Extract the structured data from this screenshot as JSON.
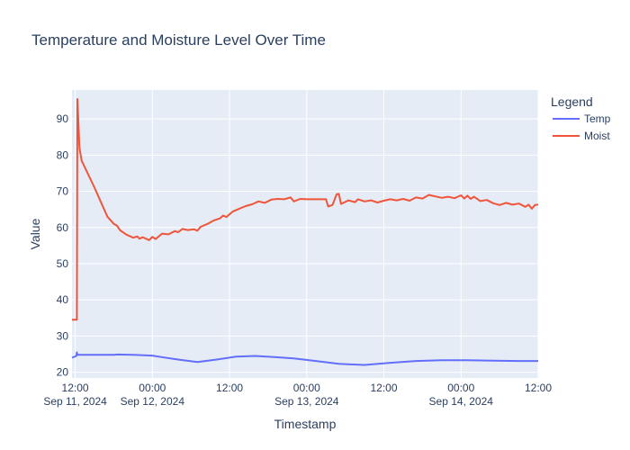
{
  "chart_data": {
    "type": "line",
    "title": "Temperature and Moisture Level Over Time",
    "xlabel": "Timestamp",
    "ylabel": "Value",
    "legend_title": "Legend",
    "legend_position": "top-right",
    "xlim": [
      "2024-09-11 11:30",
      "2024-09-14 12:00"
    ],
    "ylim": [
      18.4,
      98
    ],
    "x_ticks": [
      {
        "t": "2024-09-11 12:00",
        "label": "12:00",
        "sublabel": "Sep 11, 2024"
      },
      {
        "t": "2024-09-12 00:00",
        "label": "00:00",
        "sublabel": "Sep 12, 2024"
      },
      {
        "t": "2024-09-12 12:00",
        "label": "12:00",
        "sublabel": ""
      },
      {
        "t": "2024-09-13 00:00",
        "label": "00:00",
        "sublabel": "Sep 13, 2024"
      },
      {
        "t": "2024-09-13 12:00",
        "label": "12:00",
        "sublabel": ""
      },
      {
        "t": "2024-09-14 00:00",
        "label": "00:00",
        "sublabel": "Sep 14, 2024"
      },
      {
        "t": "2024-09-14 12:00",
        "label": "12:00",
        "sublabel": ""
      }
    ],
    "y_ticks": [
      20,
      30,
      40,
      50,
      60,
      70,
      80,
      90
    ],
    "grid": true,
    "series": [
      {
        "name": "Temp",
        "color": "#636efa",
        "points": [
          [
            "2024-09-11 11:30",
            24.0
          ],
          [
            "2024-09-11 12:10",
            24.5
          ],
          [
            "2024-09-11 12:15",
            25.5
          ],
          [
            "2024-09-11 12:20",
            24.8
          ],
          [
            "2024-09-11 14:00",
            24.8
          ],
          [
            "2024-09-11 18:00",
            24.8
          ],
          [
            "2024-09-11 18:30",
            24.9
          ],
          [
            "2024-09-11 21:00",
            24.8
          ],
          [
            "2024-09-12 00:00",
            24.6
          ],
          [
            "2024-09-12 01:00",
            24.3
          ],
          [
            "2024-09-12 04:00",
            23.5
          ],
          [
            "2024-09-12 07:00",
            22.8
          ],
          [
            "2024-09-12 10:00",
            23.5
          ],
          [
            "2024-09-12 13:00",
            24.3
          ],
          [
            "2024-09-12 16:00",
            24.5
          ],
          [
            "2024-09-12 19:00",
            24.2
          ],
          [
            "2024-09-12 22:00",
            23.8
          ],
          [
            "2024-09-13 01:00",
            23.2
          ],
          [
            "2024-09-13 05:00",
            22.3
          ],
          [
            "2024-09-13 09:00",
            22.0
          ],
          [
            "2024-09-13 13:00",
            22.6
          ],
          [
            "2024-09-13 17:00",
            23.1
          ],
          [
            "2024-09-13 21:00",
            23.3
          ],
          [
            "2024-09-14 01:00",
            23.3
          ],
          [
            "2024-09-14 05:00",
            23.2
          ],
          [
            "2024-09-14 09:00",
            23.1
          ],
          [
            "2024-09-14 12:00",
            23.1
          ]
        ]
      },
      {
        "name": "Moist",
        "color": "#ef553b",
        "points": [
          [
            "2024-09-11 11:30",
            34.5
          ],
          [
            "2024-09-11 12:15",
            34.5
          ],
          [
            "2024-09-11 12:20",
            95.5
          ],
          [
            "2024-09-11 12:40",
            82.0
          ],
          [
            "2024-09-11 13:00",
            78.5
          ],
          [
            "2024-09-11 15:00",
            71.0
          ],
          [
            "2024-09-11 17:00",
            63.0
          ],
          [
            "2024-09-11 18:00",
            61.0
          ],
          [
            "2024-09-11 18:30",
            60.5
          ],
          [
            "2024-09-11 19:00",
            59.2
          ],
          [
            "2024-09-11 20:00",
            58.0
          ],
          [
            "2024-09-11 21:00",
            57.2
          ],
          [
            "2024-09-11 21:40",
            57.5
          ],
          [
            "2024-09-11 22:00",
            56.9
          ],
          [
            "2024-09-11 22:30",
            57.3
          ],
          [
            "2024-09-11 23:30",
            56.5
          ],
          [
            "2024-09-12 00:00",
            57.4
          ],
          [
            "2024-09-12 00:30",
            56.8
          ],
          [
            "2024-09-12 01:30",
            58.3
          ],
          [
            "2024-09-12 02:30",
            58.1
          ],
          [
            "2024-09-12 03:30",
            59.0
          ],
          [
            "2024-09-12 04:00",
            58.7
          ],
          [
            "2024-09-12 04:40",
            59.6
          ],
          [
            "2024-09-12 05:30",
            59.3
          ],
          [
            "2024-09-12 06:30",
            59.5
          ],
          [
            "2024-09-12 07:00",
            59.1
          ],
          [
            "2024-09-12 07:30",
            60.2
          ],
          [
            "2024-09-12 08:30",
            60.9
          ],
          [
            "2024-09-12 09:30",
            61.9
          ],
          [
            "2024-09-12 10:30",
            62.5
          ],
          [
            "2024-09-12 11:00",
            63.3
          ],
          [
            "2024-09-12 11:30",
            62.9
          ],
          [
            "2024-09-12 12:30",
            64.4
          ],
          [
            "2024-09-12 13:30",
            65.2
          ],
          [
            "2024-09-12 14:30",
            65.9
          ],
          [
            "2024-09-12 15:30",
            66.4
          ],
          [
            "2024-09-12 16:30",
            67.2
          ],
          [
            "2024-09-12 17:30",
            66.8
          ],
          [
            "2024-09-12 18:30",
            67.7
          ],
          [
            "2024-09-12 19:30",
            67.9
          ],
          [
            "2024-09-12 20:30",
            67.8
          ],
          [
            "2024-09-12 21:30",
            68.3
          ],
          [
            "2024-09-12 22:00",
            67.2
          ],
          [
            "2024-09-12 23:00",
            67.9
          ],
          [
            "2024-09-13 00:00",
            67.8
          ],
          [
            "2024-09-13 03:00",
            67.8
          ],
          [
            "2024-09-13 03:20",
            65.8
          ],
          [
            "2024-09-13 04:00",
            66.2
          ],
          [
            "2024-09-13 04:40",
            69.2
          ],
          [
            "2024-09-13 05:00",
            69.3
          ],
          [
            "2024-09-13 05:20",
            66.5
          ],
          [
            "2024-09-13 06:30",
            67.5
          ],
          [
            "2024-09-13 07:30",
            67.0
          ],
          [
            "2024-09-13 08:00",
            67.8
          ],
          [
            "2024-09-13 09:00",
            67.2
          ],
          [
            "2024-09-13 10:00",
            67.5
          ],
          [
            "2024-09-13 11:00",
            66.9
          ],
          [
            "2024-09-13 12:00",
            67.4
          ],
          [
            "2024-09-13 13:00",
            67.8
          ],
          [
            "2024-09-13 14:00",
            67.5
          ],
          [
            "2024-09-13 15:00",
            67.9
          ],
          [
            "2024-09-13 16:00",
            67.4
          ],
          [
            "2024-09-13 17:00",
            68.3
          ],
          [
            "2024-09-13 18:00",
            68.0
          ],
          [
            "2024-09-13 19:00",
            69.0
          ],
          [
            "2024-09-13 20:00",
            68.6
          ],
          [
            "2024-09-13 21:00",
            68.2
          ],
          [
            "2024-09-13 22:00",
            68.5
          ],
          [
            "2024-09-13 23:00",
            68.1
          ],
          [
            "2024-09-14 00:00",
            68.9
          ],
          [
            "2024-09-14 00:30",
            68.0
          ],
          [
            "2024-09-14 01:00",
            68.8
          ],
          [
            "2024-09-14 01:30",
            67.9
          ],
          [
            "2024-09-14 02:00",
            68.5
          ],
          [
            "2024-09-14 03:00",
            67.3
          ],
          [
            "2024-09-14 04:00",
            67.6
          ],
          [
            "2024-09-14 05:00",
            66.7
          ],
          [
            "2024-09-14 06:00",
            66.2
          ],
          [
            "2024-09-14 07:00",
            66.8
          ],
          [
            "2024-09-14 08:00",
            66.3
          ],
          [
            "2024-09-14 09:00",
            66.6
          ],
          [
            "2024-09-14 10:00",
            65.7
          ],
          [
            "2024-09-14 10:30",
            66.3
          ],
          [
            "2024-09-14 11:00",
            65.2
          ],
          [
            "2024-09-14 11:30",
            66.2
          ],
          [
            "2024-09-14 12:00",
            66.3
          ]
        ]
      }
    ]
  }
}
